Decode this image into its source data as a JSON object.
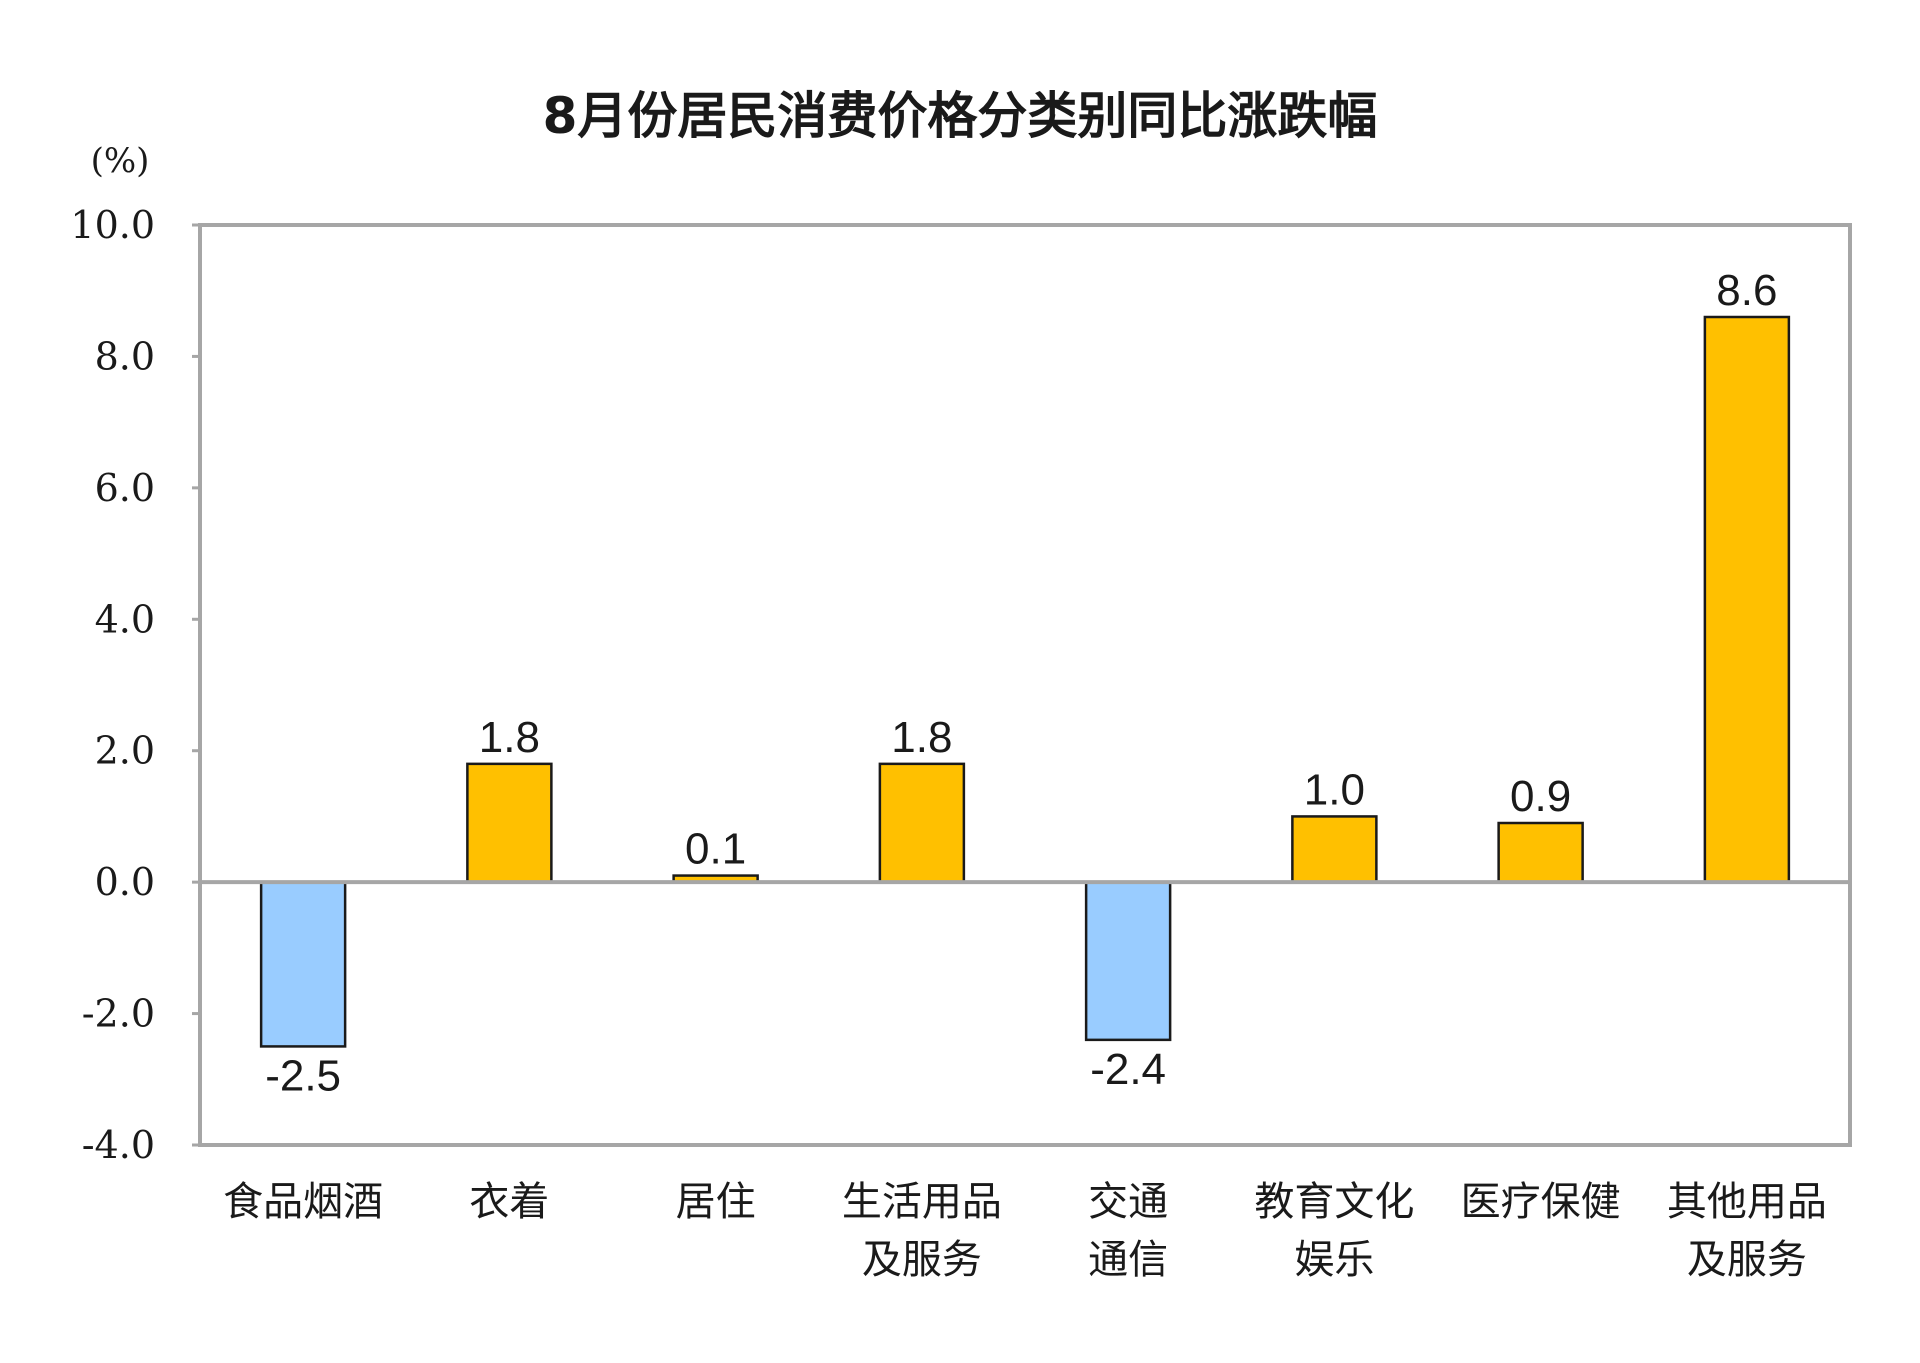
{
  "chart_data": {
    "type": "bar",
    "title": "8月份居民消费价格分类别同比涨跌幅",
    "unit": "(%)",
    "xlabel": "",
    "ylabel": "",
    "ylim": [
      -4.0,
      10.0
    ],
    "yticks": [
      "10.0",
      "8.0",
      "6.0",
      "4.0",
      "2.0",
      "0.0",
      "-2.0",
      "-4.0"
    ],
    "ytick_values": [
      10,
      8,
      6,
      4,
      2,
      0,
      -2,
      -4
    ],
    "grid": false,
    "legend": "none",
    "categories": [
      [
        "食品烟酒"
      ],
      [
        "衣着"
      ],
      [
        "居住"
      ],
      [
        "生活用品",
        "及服务"
      ],
      [
        "交通",
        "通信"
      ],
      [
        "教育文化",
        "娱乐"
      ],
      [
        "医疗保健"
      ],
      [
        "其他用品",
        "及服务"
      ]
    ],
    "values": [
      -2.5,
      1.8,
      0.1,
      1.8,
      -2.4,
      1.0,
      0.9,
      8.6
    ],
    "value_labels": [
      "-2.5",
      "1.8",
      "0.1",
      "1.8",
      "-2.4",
      "1.0",
      "0.9",
      "8.6"
    ],
    "colors": {
      "positive": "#FFC000",
      "negative": "#99CCFF",
      "bar_border": "#1a1a1a",
      "frame": "#a6a6a6",
      "zero_line": "#a6a6a6"
    }
  }
}
